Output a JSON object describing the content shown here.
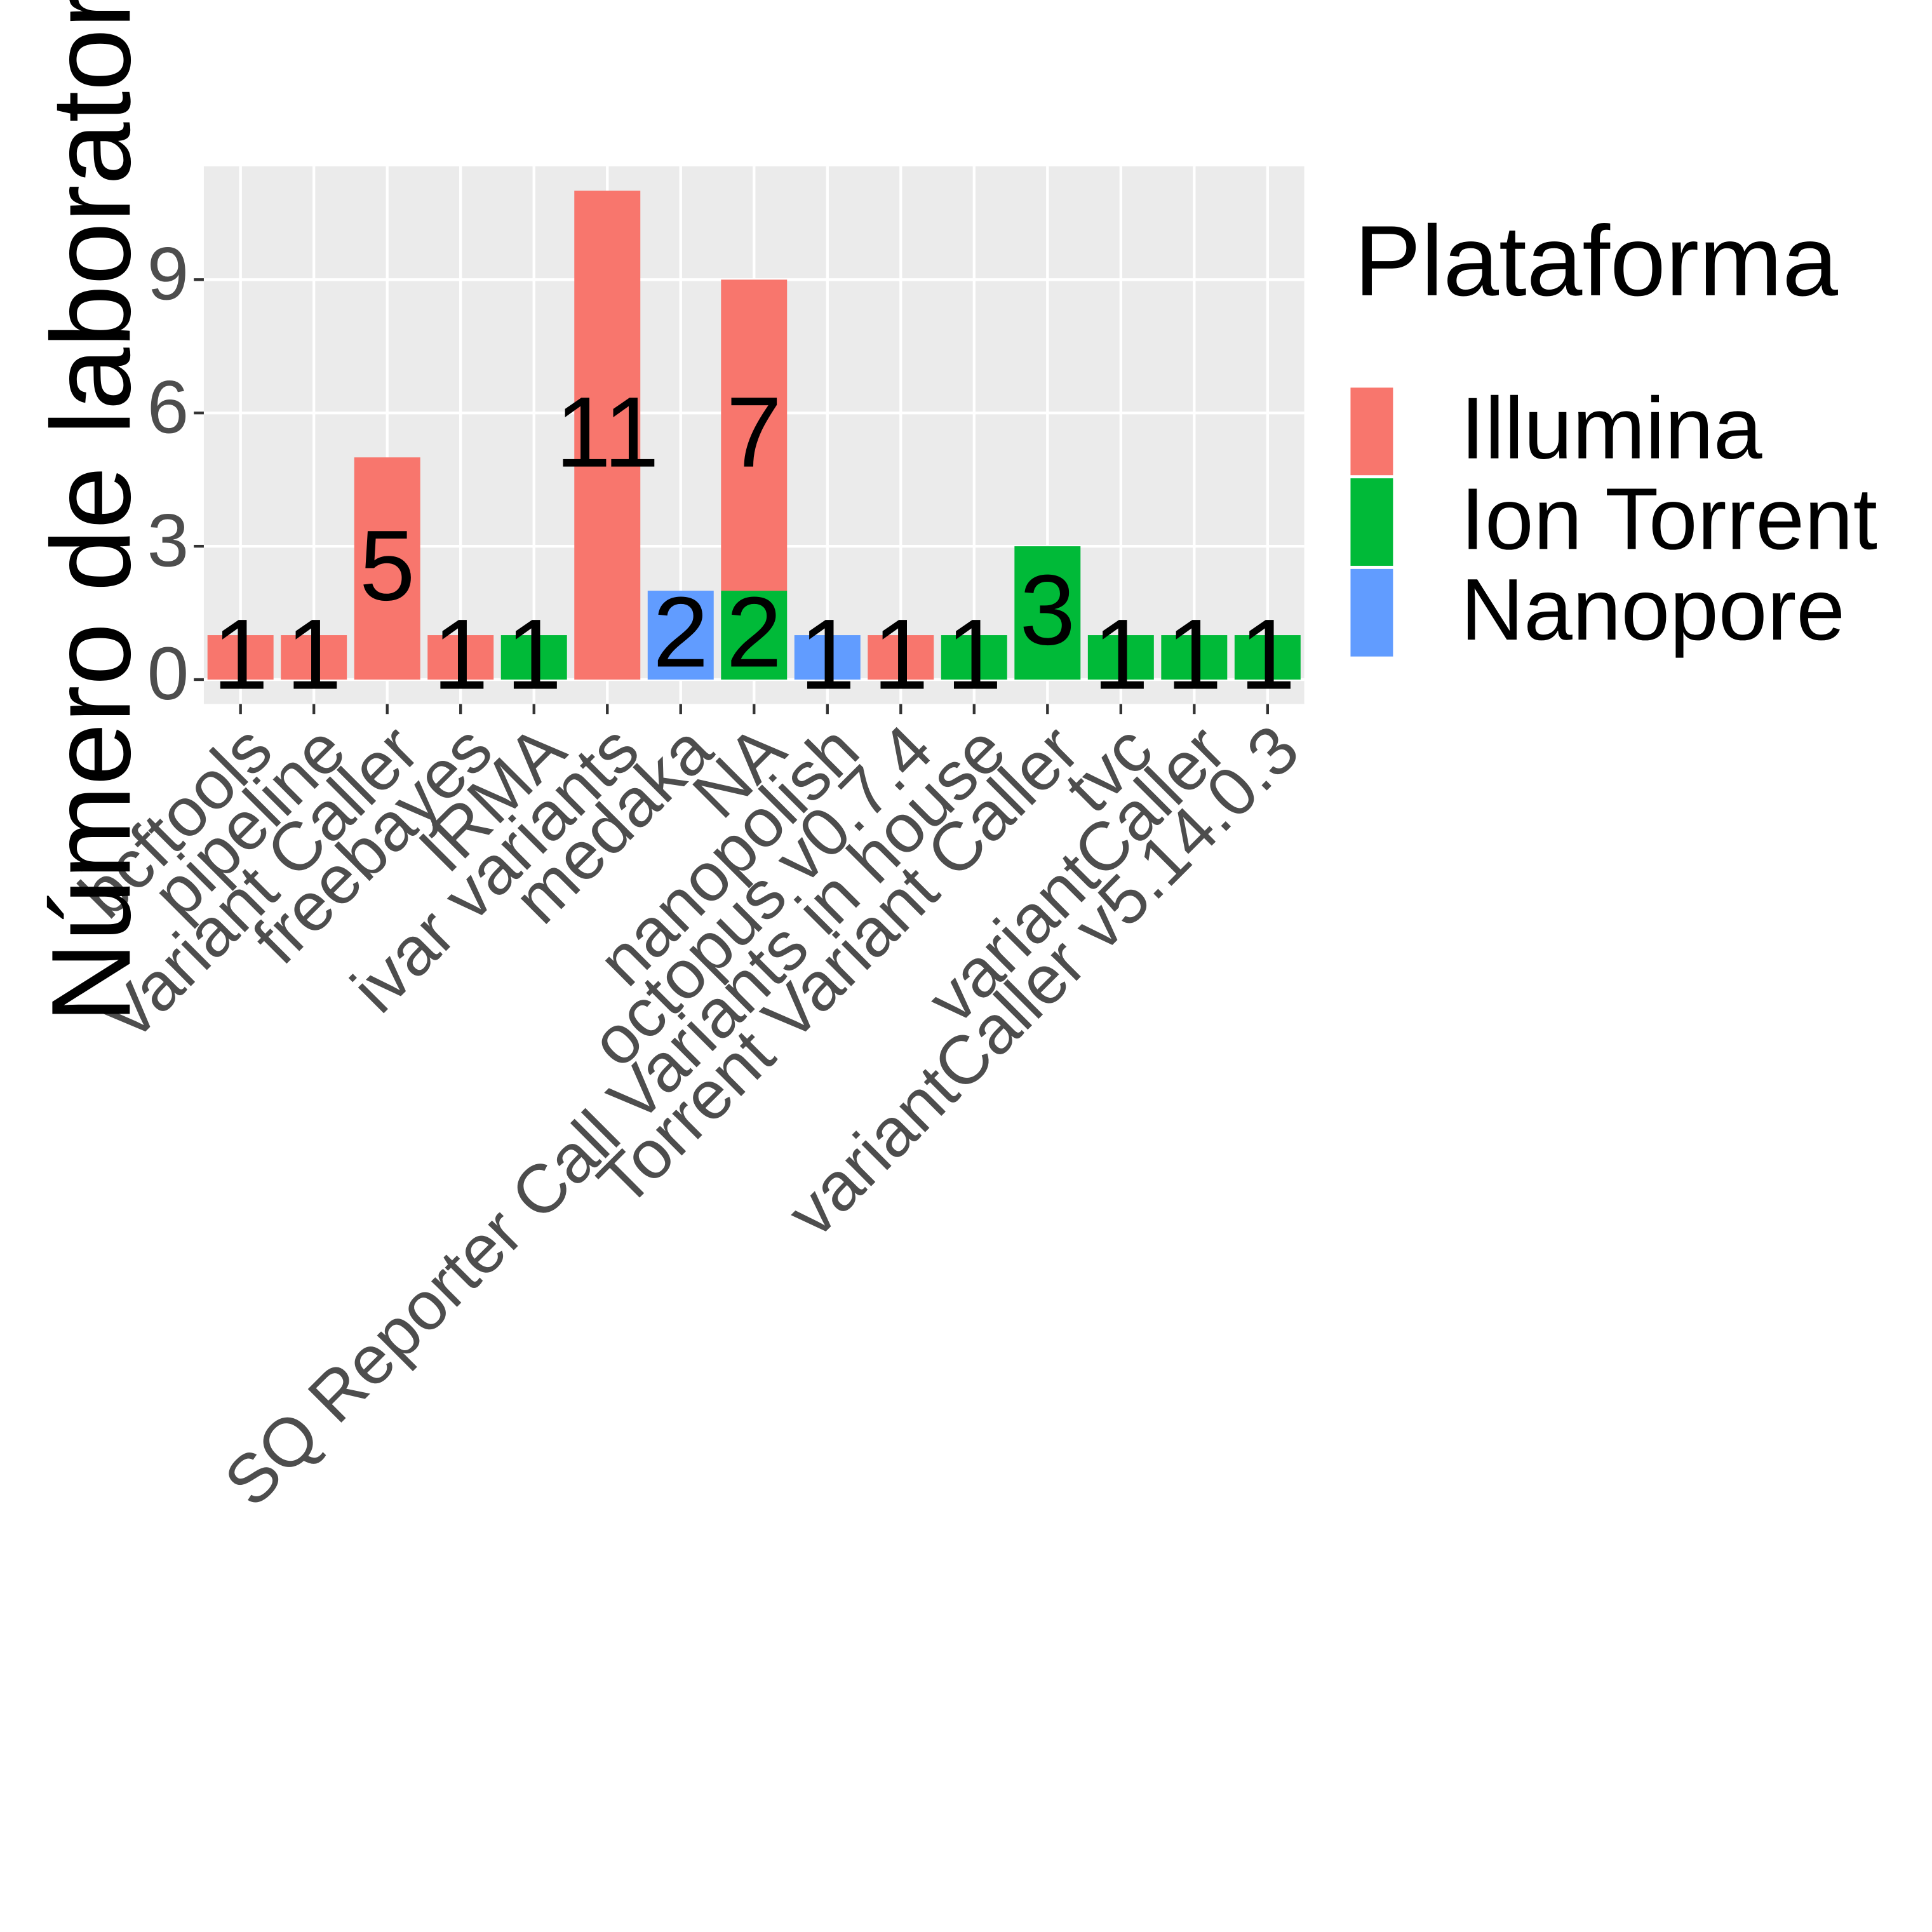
{
  "chart_data": {
    "type": "stacked_bar",
    "y_label": "Número de laboratorios",
    "legend_title": "Plataforma",
    "categories": [
      "bcftools",
      "pipeline",
      "Variant Caller",
      "freebayes",
      "IRMA",
      "ivar variants",
      "medaka",
      "NA",
      "nanopolish",
      "octopus v0.7.4",
      "SQ Reporter Call Variants in house",
      "Torrent Variant Caller",
      "tvc",
      "variantCaller",
      "variantCaller v5.14.0.3"
    ],
    "series": [
      {
        "name": "Illumina",
        "color": "#f8766d",
        "values": [
          1,
          1,
          5,
          1,
          null,
          11,
          null,
          7,
          null,
          1,
          null,
          null,
          null,
          null,
          null
        ]
      },
      {
        "name": "Ion Torrent",
        "color": "#00ba38",
        "values": [
          null,
          null,
          null,
          null,
          1,
          null,
          null,
          2,
          null,
          null,
          1,
          3,
          1,
          1,
          1
        ]
      },
      {
        "name": "Nanopore",
        "color": "#619cff",
        "values": [
          null,
          null,
          null,
          null,
          null,
          null,
          2,
          null,
          1,
          null,
          null,
          null,
          null,
          null,
          null
        ]
      }
    ],
    "ylim": [
      -0.55,
      11.55
    ],
    "yticks": [
      0,
      3,
      6,
      9
    ],
    "grid": true
  }
}
